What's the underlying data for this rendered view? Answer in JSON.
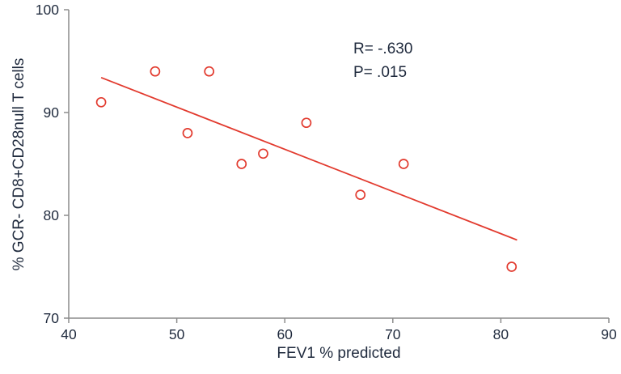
{
  "chart_data": {
    "type": "scatter",
    "title": "",
    "xlabel": "FEV1 % predicted",
    "ylabel": "% GCR- CD8+CD28null T cells",
    "xlim": [
      40,
      90
    ],
    "ylim": [
      70,
      100
    ],
    "x_ticks": [
      40,
      50,
      60,
      70,
      80,
      90
    ],
    "y_ticks": [
      70,
      80,
      90,
      100
    ],
    "grid": false,
    "legend": "none",
    "points": [
      {
        "x": 43,
        "y": 91
      },
      {
        "x": 48,
        "y": 94
      },
      {
        "x": 51,
        "y": 88
      },
      {
        "x": 53,
        "y": 94
      },
      {
        "x": 56,
        "y": 85
      },
      {
        "x": 58,
        "y": 86
      },
      {
        "x": 62,
        "y": 89
      },
      {
        "x": 67,
        "y": 82
      },
      {
        "x": 71,
        "y": 85
      },
      {
        "x": 81,
        "y": 75
      }
    ],
    "trend_line": {
      "x1": 43,
      "y1": 93.4,
      "x2": 81.5,
      "y2": 77.6
    },
    "annotations": {
      "r_label": "R= -.630",
      "p_label": "P= .015"
    },
    "colors": {
      "marker": "#e23a2e",
      "line": "#e23a2e",
      "axis": "#8c8c8c",
      "text": "#1f2a3d"
    }
  }
}
